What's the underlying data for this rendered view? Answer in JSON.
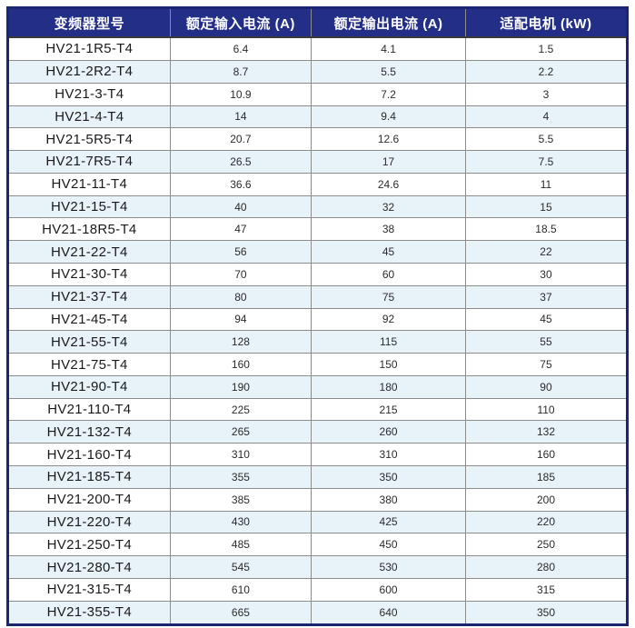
{
  "colors": {
    "header_bg": "#232e87",
    "outer_border": "#1c2572",
    "grid_line": "#8c8c8c",
    "row_alt_bg": "#e8f2f9",
    "header_text": "#ffffff",
    "cell_text": "#2b2b2b"
  },
  "table": {
    "headers": [
      "变频器型号",
      "额定输入电流 (A)",
      "额定输出电流 (A)",
      "适配电机 (kW)"
    ],
    "rows": [
      [
        "HV21-1R5-T4",
        "6.4",
        "4.1",
        "1.5"
      ],
      [
        "HV21-2R2-T4",
        "8.7",
        "5.5",
        "2.2"
      ],
      [
        "HV21-3-T4",
        "10.9",
        "7.2",
        "3"
      ],
      [
        "HV21-4-T4",
        "14",
        "9.4",
        "4"
      ],
      [
        "HV21-5R5-T4",
        "20.7",
        "12.6",
        "5.5"
      ],
      [
        "HV21-7R5-T4",
        "26.5",
        "17",
        "7.5"
      ],
      [
        "HV21-11-T4",
        "36.6",
        "24.6",
        "11"
      ],
      [
        "HV21-15-T4",
        "40",
        "32",
        "15"
      ],
      [
        "HV21-18R5-T4",
        "47",
        "38",
        "18.5"
      ],
      [
        "HV21-22-T4",
        "56",
        "45",
        "22"
      ],
      [
        "HV21-30-T4",
        "70",
        "60",
        "30"
      ],
      [
        "HV21-37-T4",
        "80",
        "75",
        "37"
      ],
      [
        "HV21-45-T4",
        "94",
        "92",
        "45"
      ],
      [
        "HV21-55-T4",
        "128",
        "115",
        "55"
      ],
      [
        "HV21-75-T4",
        "160",
        "150",
        "75"
      ],
      [
        "HV21-90-T4",
        "190",
        "180",
        "90"
      ],
      [
        "HV21-110-T4",
        "225",
        "215",
        "110"
      ],
      [
        "HV21-132-T4",
        "265",
        "260",
        "132"
      ],
      [
        "HV21-160-T4",
        "310",
        "310",
        "160"
      ],
      [
        "HV21-185-T4",
        "355",
        "350",
        "185"
      ],
      [
        "HV21-200-T4",
        "385",
        "380",
        "200"
      ],
      [
        "HV21-220-T4",
        "430",
        "425",
        "220"
      ],
      [
        "HV21-250-T4",
        "485",
        "450",
        "250"
      ],
      [
        "HV21-280-T4",
        "545",
        "530",
        "280"
      ],
      [
        "HV21-315-T4",
        "610",
        "600",
        "315"
      ],
      [
        "HV21-355-T4",
        "665",
        "640",
        "350"
      ]
    ]
  }
}
